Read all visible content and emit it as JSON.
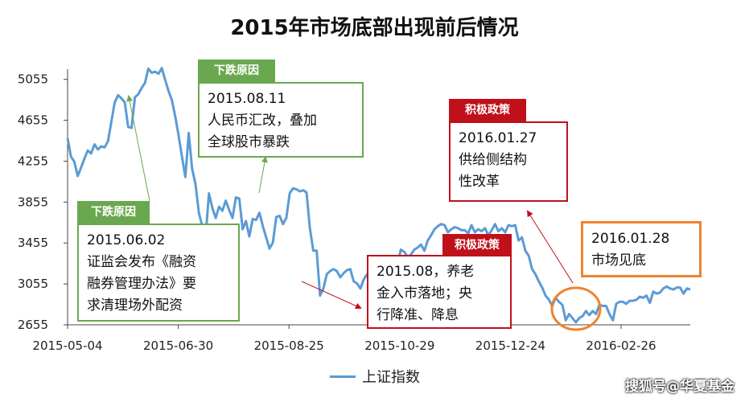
{
  "chart_data": {
    "type": "line",
    "title": "2015年市场底部出现前后情况",
    "y_ticks": [
      5055,
      4655,
      4255,
      3855,
      3455,
      3055,
      2655
    ],
    "ylim": [
      2655,
      5155
    ],
    "x_ticks": [
      "2015-05-04",
      "2015-06-30",
      "2015-08-25",
      "2015-10-29",
      "2015-12-24",
      "2016-02-26"
    ],
    "grid": false,
    "legend_position": "bottom",
    "series": [
      {
        "name": "上证指数",
        "color": "#5b9bd5",
        "values": [
          4480,
          4300,
          4250,
          4110,
          4190,
          4280,
          4360,
          4330,
          4420,
          4370,
          4400,
          4390,
          4450,
          4640,
          4830,
          4900,
          4870,
          4830,
          4590,
          4580,
          4880,
          4910,
          4970,
          5020,
          5160,
          5120,
          5130,
          5110,
          5165,
          5050,
          4940,
          4850,
          4690,
          4500,
          4300,
          4100,
          4530,
          4180,
          4030,
          3750,
          3620,
          3510,
          3940,
          3800,
          3700,
          3810,
          3770,
          3870,
          3780,
          3700,
          3900,
          3890,
          3590,
          3670,
          3520,
          3690,
          3680,
          3750,
          3620,
          3510,
          3400,
          3460,
          3710,
          3720,
          3640,
          3700,
          3940,
          3990,
          3980,
          3960,
          3970,
          3950,
          3600,
          3380,
          3380,
          2940,
          3010,
          3150,
          3180,
          3200,
          3180,
          3120,
          3160,
          3190,
          3200,
          3080,
          3060,
          3010,
          3100,
          3150,
          3120,
          3050,
          3100,
          3100,
          3060,
          3080,
          3170,
          3170,
          3240,
          3390,
          3370,
          3320,
          3340,
          3390,
          3410,
          3440,
          3380,
          3480,
          3530,
          3590,
          3620,
          3640,
          3630,
          3560,
          3590,
          3610,
          3600,
          3580,
          3580,
          3550,
          3630,
          3560,
          3590,
          3570,
          3600,
          3530,
          3580,
          3640,
          3570,
          3600,
          3560,
          3630,
          3620,
          3630,
          3480,
          3510,
          3380,
          3330,
          3200,
          3150,
          3080,
          3020,
          2940,
          2900,
          2840,
          2920,
          2880,
          2850,
          2700,
          2760,
          2720,
          2680,
          2720,
          2740,
          2790,
          2750,
          2790,
          2760,
          2850,
          2840,
          2840,
          2760,
          2700,
          2860,
          2880,
          2880,
          2860,
          2890,
          2890,
          2900,
          2930,
          2920,
          2940,
          2870,
          2980,
          2960,
          2970,
          3010,
          3030,
          3010,
          3000,
          3020,
          3020,
          2960,
          3010,
          3000
        ]
      }
    ]
  },
  "annotations": {
    "a1": {
      "tag": "下跌原因",
      "text": "2015.06.02\n证监会发布《融资\n融券管理办法》要\n求清理场外配资"
    },
    "a2": {
      "tag": "下跌原因",
      "text": "2015.08.11\n人民币汇改，叠加\n全球股市暴跌"
    },
    "a3": {
      "tag": "积极政策",
      "text": "2015.08，养老\n金入市落地；央\n行降准、降息"
    },
    "a4": {
      "tag": "积极政策",
      "text": "2016.01.27\n供给侧结构\n性改革"
    },
    "a5": {
      "text": "2016.01.28\n市场见底"
    }
  },
  "watermark": "搜狐号@华夏基金"
}
